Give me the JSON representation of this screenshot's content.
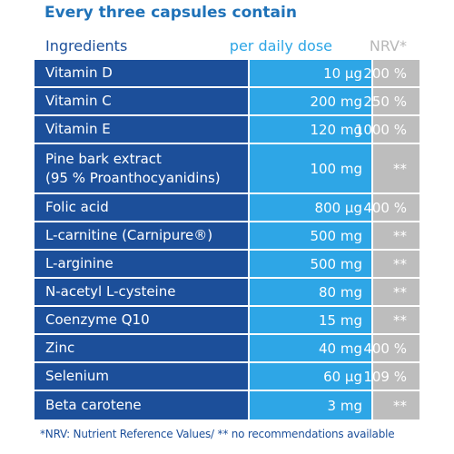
{
  "title": "Every three capsules contain",
  "header": {
    "ingredients": "Ingredients",
    "dose": "per daily dose",
    "nrv": "NRV*"
  },
  "rows": [
    {
      "name": "Vitamin D",
      "dose": "10 µg",
      "nrv": "200 %"
    },
    {
      "name": "Vitamin C",
      "dose": "200 mg",
      "nrv": "250 %"
    },
    {
      "name": "Vitamin E",
      "dose": "120 mg",
      "nrv": "1000 %"
    },
    {
      "name": "Pine bark extract\n(95 % Proanthocyanidins)",
      "dose": "100 mg",
      "nrv": "**"
    },
    {
      "name": "Folic acid",
      "dose": "800 µg",
      "nrv": "400 %"
    },
    {
      "name": "L-carnitine (Carnipure®)",
      "dose": "500 mg",
      "nrv": "**"
    },
    {
      "name": "L-arginine",
      "dose": "500 mg",
      "nrv": "**"
    },
    {
      "name": "N-acetyl L-cysteine",
      "dose": "80 mg",
      "nrv": "**"
    },
    {
      "name": "Coenzyme Q10",
      "dose": "15 mg",
      "nrv": "**"
    },
    {
      "name": "Zinc",
      "dose": "40 mg",
      "nrv": "400 %"
    },
    {
      "name": "Selenium",
      "dose": "60 µg",
      "nrv": "109 %"
    },
    {
      "name": "Beta carotene",
      "dose": "3 mg",
      "nrv": "**"
    }
  ],
  "footer": "*NRV: Nutrient Reference Values/ ** no recommendations available",
  "colors": {
    "name_column": "#1c4f9a",
    "dose_column": "#2ea6e6",
    "nrv_column": "#bdbdbd",
    "title": "#1f72b8"
  }
}
